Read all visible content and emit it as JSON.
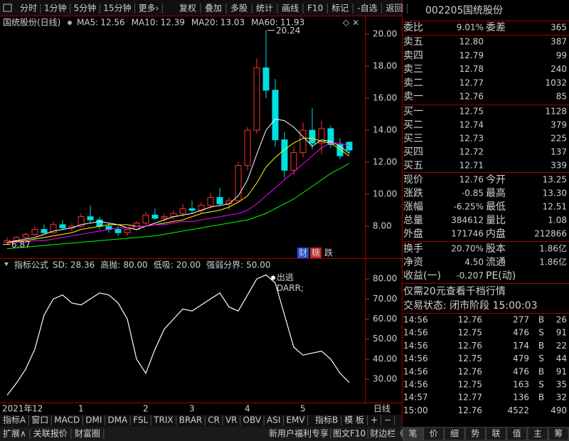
{
  "toolbar": {
    "left": [
      "分时",
      "1分钟",
      "5分钟",
      "15分钟",
      "更多›"
    ],
    "right": [
      "复权",
      "叠加",
      "多股",
      "统计",
      "画线",
      "F10",
      "标记",
      "-自选",
      "返回"
    ]
  },
  "price_chart": {
    "title": "国统股份(日线)",
    "ma": [
      {
        "name": "MA5:",
        "value": 12.56,
        "color": "#ffffff",
        "values": [
          7.0,
          7.1,
          7.2,
          7.3,
          7.5,
          7.7,
          7.8,
          7.9,
          8.1,
          8.2,
          8.3,
          8.2,
          8.1,
          7.9,
          7.8,
          8.0,
          8.2,
          8.4,
          8.6,
          8.7,
          8.8,
          9.0,
          9.2,
          9.3,
          9.4,
          9.9,
          10.9,
          12.5,
          14.0,
          14.7,
          14.6,
          14.2,
          13.6,
          13.0,
          13.4,
          13.3,
          13.0,
          12.56
        ]
      },
      {
        "name": "MA10:",
        "value": 12.39,
        "color": "#ffff00",
        "values": [
          7.0,
          7.05,
          7.1,
          7.2,
          7.3,
          7.4,
          7.5,
          7.6,
          7.8,
          7.9,
          8.0,
          8.1,
          8.1,
          8.1,
          8.0,
          8.0,
          8.1,
          8.2,
          8.3,
          8.4,
          8.6,
          8.8,
          8.9,
          9.0,
          9.2,
          9.5,
          9.9,
          10.7,
          11.7,
          12.3,
          12.8,
          13.2,
          13.5,
          13.5,
          13.3,
          13.2,
          12.8,
          12.39
        ]
      },
      {
        "name": "MA20:",
        "value": 13.03,
        "color": "#ff00ff",
        "values": [
          6.9,
          7.0,
          7.0,
          7.1,
          7.1,
          7.2,
          7.3,
          7.4,
          7.5,
          7.6,
          7.7,
          7.8,
          7.9,
          7.9,
          8.0,
          8.0,
          8.1,
          8.1,
          8.2,
          8.3,
          8.3,
          8.4,
          8.5,
          8.6,
          8.7,
          8.8,
          9.0,
          9.4,
          9.9,
          10.4,
          10.9,
          11.4,
          11.9,
          12.4,
          12.9,
          13.2,
          13.2,
          13.03
        ]
      },
      {
        "name": "MA60:",
        "value": 11.93,
        "color": "#00ff00",
        "values": [
          6.6,
          6.65,
          6.7,
          6.75,
          6.8,
          6.85,
          6.9,
          6.95,
          7.0,
          7.05,
          7.1,
          7.15,
          7.2,
          7.25,
          7.3,
          7.35,
          7.4,
          7.5,
          7.6,
          7.7,
          7.8,
          7.9,
          8.0,
          8.1,
          8.2,
          8.3,
          8.4,
          8.6,
          8.8,
          9.1,
          9.4,
          9.7,
          10.1,
          10.5,
          10.9,
          11.3,
          11.6,
          11.93
        ]
      }
    ],
    "categories": [
      "2021年",
      null,
      null,
      "12",
      null,
      null,
      null,
      null,
      "1",
      null,
      null,
      null,
      null,
      null,
      null,
      "2",
      null,
      null,
      null,
      null,
      "3",
      null,
      null,
      null,
      null,
      null,
      "4",
      null,
      null,
      null,
      null,
      null,
      "5",
      null,
      null,
      null,
      null,
      null
    ],
    "candles": [
      {
        "open": 7.0,
        "high": 7.3,
        "low": 6.87,
        "close": 7.1
      },
      {
        "open": 7.1,
        "high": 7.4,
        "low": 7.0,
        "close": 7.3
      },
      {
        "open": 7.3,
        "high": 7.6,
        "low": 7.2,
        "close": 7.5
      },
      {
        "open": 7.5,
        "high": 8.0,
        "low": 7.4,
        "close": 7.8
      },
      {
        "open": 7.8,
        "high": 8.1,
        "low": 7.5,
        "close": 7.6
      },
      {
        "open": 7.6,
        "high": 8.3,
        "low": 7.5,
        "close": 8.1
      },
      {
        "open": 8.1,
        "high": 8.4,
        "low": 7.8,
        "close": 7.9
      },
      {
        "open": 7.9,
        "high": 8.2,
        "low": 7.7,
        "close": 8.0
      },
      {
        "open": 8.0,
        "high": 8.8,
        "low": 7.9,
        "close": 8.6
      },
      {
        "open": 8.6,
        "high": 9.3,
        "low": 8.2,
        "close": 8.4
      },
      {
        "open": 8.4,
        "high": 8.6,
        "low": 7.8,
        "close": 8.0
      },
      {
        "open": 8.0,
        "high": 8.2,
        "low": 7.6,
        "close": 7.8
      },
      {
        "open": 7.8,
        "high": 8.0,
        "low": 7.4,
        "close": 7.6
      },
      {
        "open": 7.6,
        "high": 7.9,
        "low": 7.4,
        "close": 7.8
      },
      {
        "open": 7.8,
        "high": 8.3,
        "low": 7.7,
        "close": 8.2
      },
      {
        "open": 8.2,
        "high": 8.9,
        "low": 8.0,
        "close": 8.7
      },
      {
        "open": 8.7,
        "high": 9.1,
        "low": 8.4,
        "close": 8.5
      },
      {
        "open": 8.5,
        "high": 8.8,
        "low": 8.3,
        "close": 8.6
      },
      {
        "open": 8.6,
        "high": 9.0,
        "low": 8.4,
        "close": 8.8
      },
      {
        "open": 8.8,
        "high": 9.4,
        "low": 8.6,
        "close": 9.1
      },
      {
        "open": 9.1,
        "high": 9.6,
        "low": 8.8,
        "close": 9.0
      },
      {
        "open": 9.0,
        "high": 9.5,
        "low": 8.8,
        "close": 9.3
      },
      {
        "open": 9.3,
        "high": 10.1,
        "low": 9.1,
        "close": 9.8
      },
      {
        "open": 9.8,
        "high": 10.4,
        "low": 9.3,
        "close": 9.4
      },
      {
        "open": 9.4,
        "high": 9.8,
        "low": 9.0,
        "close": 9.6
      },
      {
        "open": 9.6,
        "high": 12.0,
        "low": 9.5,
        "close": 11.8
      },
      {
        "open": 11.8,
        "high": 14.2,
        "low": 11.5,
        "close": 14.0
      },
      {
        "open": 14.0,
        "high": 18.5,
        "low": 13.8,
        "close": 17.9
      },
      {
        "open": 17.9,
        "high": 20.24,
        "low": 16.0,
        "close": 16.5
      },
      {
        "open": 16.5,
        "high": 17.2,
        "low": 13.0,
        "close": 13.4
      },
      {
        "open": 13.4,
        "high": 13.9,
        "low": 11.0,
        "close": 11.5
      },
      {
        "open": 11.5,
        "high": 13.0,
        "low": 11.2,
        "close": 12.6
      },
      {
        "open": 12.6,
        "high": 14.5,
        "low": 12.3,
        "close": 14.0
      },
      {
        "open": 14.0,
        "high": 15.4,
        "low": 12.8,
        "close": 13.2
      },
      {
        "open": 13.2,
        "high": 14.6,
        "low": 12.5,
        "close": 14.1
      },
      {
        "open": 14.1,
        "high": 14.3,
        "low": 12.9,
        "close": 13.1
      },
      {
        "open": 13.1,
        "high": 13.5,
        "low": 12.2,
        "close": 12.4
      },
      {
        "open": 13.25,
        "high": 13.3,
        "low": 12.51,
        "close": 12.76
      }
    ],
    "ylim": [
      6.05,
      20.27
    ],
    "yticks": [
      {
        "value": 8,
        "label": "8.00"
      },
      {
        "value": 10,
        "label": "10.00"
      },
      {
        "value": 12,
        "label": "12.00"
      },
      {
        "value": 14,
        "label": "14.00"
      },
      {
        "value": 16,
        "label": "16.00"
      },
      {
        "value": 18,
        "label": "18.00"
      },
      {
        "value": 20,
        "label": "20.00"
      }
    ],
    "high_label": 20.24,
    "low_label": 6.87,
    "badges": [
      "财",
      "糖",
      "跌"
    ]
  },
  "indicator": {
    "title": "指标公式",
    "params": [
      {
        "name": "SD:",
        "value": "28.36"
      },
      {
        "name": "高抛:",
        "value": "80.00"
      },
      {
        "name": "低吸:",
        "value": "20.00"
      },
      {
        "name": "强弱分界:",
        "value": "50.00"
      }
    ],
    "values": [
      22,
      28,
      35,
      45,
      62,
      70,
      72,
      68,
      67,
      70,
      73,
      72,
      68,
      60,
      40,
      33,
      45,
      55,
      60,
      65,
      64,
      67,
      70,
      73,
      66,
      64,
      72,
      80,
      82,
      78,
      62,
      46,
      42,
      43,
      44,
      40,
      33,
      28.36
    ],
    "ylim": [
      18.7,
      88.9
    ],
    "yticks": [
      {
        "value": 30,
        "label": "30.00"
      },
      {
        "value": 40,
        "label": "40.00"
      },
      {
        "value": 50,
        "label": "50.00"
      },
      {
        "value": 60,
        "label": "60.00"
      },
      {
        "value": 70,
        "label": "70.00"
      },
      {
        "value": 80,
        "label": "80.00"
      }
    ],
    "annotations": [
      "出逃",
      "DARR;"
    ]
  },
  "bottom": {
    "indicator_tabs": [
      "指标A",
      "窗口",
      "MACD",
      "DMI",
      "DMA",
      "FSL",
      "TRIX",
      "BRAR",
      "CR",
      "VR",
      "OBV",
      "ASI",
      "EMV"
    ],
    "tabs_right": [
      "指标B",
      "模 板",
      "+",
      "−"
    ],
    "period": "日线",
    "footer_left": [
      "扩展∧",
      "关联报价",
      "财富圈"
    ],
    "footer_right": [
      "新用户福利专享",
      "图文F10",
      "财边栏《"
    ]
  },
  "quote": {
    "code": "002205",
    "name": "国统股份",
    "wb": [
      "委比",
      "9.01%",
      "委差",
      "365"
    ],
    "asks": [
      [
        "卖五",
        "12.80",
        "387"
      ],
      [
        "卖四",
        "12.79",
        "99"
      ],
      [
        "卖三",
        "12.78",
        "240"
      ],
      [
        "卖二",
        "12.77",
        "1032"
      ],
      [
        "卖一",
        "12.76",
        "85"
      ]
    ],
    "bids": [
      [
        "买一",
        "12.75",
        "1128"
      ],
      [
        "买二",
        "12.74",
        "379"
      ],
      [
        "买三",
        "12.73",
        "225"
      ],
      [
        "买四",
        "12.72",
        "137"
      ],
      [
        "买五",
        "12.71",
        "339"
      ]
    ],
    "stats": [
      [
        "现价",
        "12.76",
        "今开",
        "13.25"
      ],
      [
        "涨跌",
        "-0.85",
        "最高",
        "13.30"
      ],
      [
        "涨幅",
        "-6.25%",
        "最低",
        "12.51"
      ],
      [
        "总量",
        "384612",
        "量比",
        "1.08"
      ],
      [
        "外盘",
        "171746",
        "内盘",
        "212866"
      ]
    ],
    "stats2": [
      [
        "换手",
        "20.70%",
        "股本",
        "1.86亿"
      ],
      [
        "净资",
        "4.50",
        "流通",
        "1.86亿"
      ],
      [
        "收益(一)",
        "-0.207",
        "PE(动)"
      ]
    ],
    "promo": "仅需20元查看千档行情",
    "status": "交易状态: 闭市阶段 15:00:03",
    "trades": [
      {
        "time": "14:56",
        "price": "12.76",
        "volume": "277",
        "side": "B",
        "count": "26"
      },
      {
        "time": "14:56",
        "price": "12.75",
        "volume": "476",
        "side": "S",
        "count": "91"
      },
      {
        "time": "14:56",
        "price": "12.76",
        "volume": "174",
        "side": "B",
        "count": "22"
      },
      {
        "time": "14:56",
        "price": "12.75",
        "volume": "479",
        "side": "S",
        "count": "44"
      },
      {
        "time": "14:56",
        "price": "12.76",
        "volume": "476",
        "side": "B",
        "count": "91"
      },
      {
        "time": "14:56",
        "price": "12.75",
        "volume": "163",
        "side": "S",
        "count": "35"
      },
      {
        "time": "14:57",
        "price": "12.77",
        "volume": "136",
        "side": "B",
        "count": "32"
      },
      {
        "time": "15:00",
        "price": "12.76",
        "volume": "4522",
        "count": "490"
      }
    ],
    "tabs": [
      "笔",
      "价",
      "细",
      "势",
      "联",
      "值",
      "主",
      "筹"
    ]
  }
}
